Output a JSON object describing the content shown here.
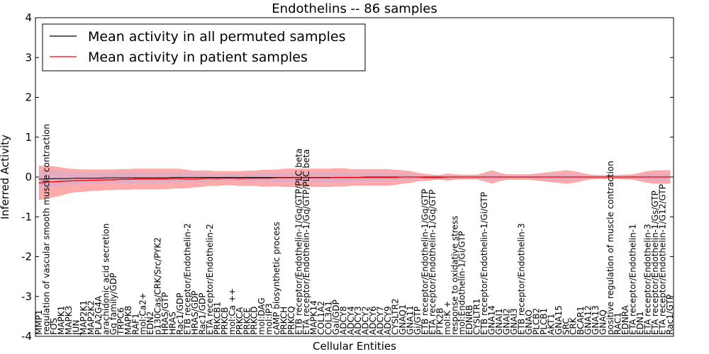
{
  "chart_data": {
    "type": "line",
    "title": "Endothelins -- 86 samples",
    "xlabel": "Cellular Entities",
    "ylabel": "Inferred Activity",
    "ylim": [
      -4,
      4
    ],
    "yticks": [
      -4,
      -3,
      -2,
      -1,
      0,
      1,
      2,
      3,
      4
    ],
    "grid": false,
    "legend_position": "top-left",
    "categories": [
      "MMP1",
      "regulation of vascular smooth muscle contraction",
      "FOS",
      "MAPK1",
      "MAPK3",
      "JUN",
      "MAP2K1",
      "MAP2K2",
      "PLA2G4A",
      "arachidonic acid secretion",
      "Gq family/GDP",
      "TRPC6",
      "MAPK8",
      "RAF1",
      "mol:Ca2+",
      "EDN2",
      "p130Cas/CRK/Src/PYK2",
      "HRAS/GTP",
      "HRAS",
      "Rac1/GDP",
      "ETB receptor/Endothelin-2",
      "HRAS/GDP",
      "Rac1/GDP",
      "ETA receptor/Endothelin-2",
      "PRKCB1",
      "PRKCB",
      "mol:Ca ++",
      "PRKCA",
      "PRKCE",
      "PRKCD",
      "mol:DAG",
      "mol:IP3",
      "cAMP biosynthetic process",
      "PRKCH",
      "PRKCQ",
      "ETB receptor/Endothelin-1/Gq/GTP/PLC beta",
      "ETA receptor/Endothelin-1/Gq/GTP/PLC beta",
      "MAPK14",
      "COL1A2",
      "COL3A1",
      "Gai/GDP",
      "ADCY8",
      "ADCY4",
      "ADCY3",
      "ADCY2",
      "ADCY6",
      "ADCY7",
      "ADCY9",
      "CYSLTR2",
      "GNAQ1",
      "GNA11",
      "Gi/GTP",
      "ETB receptor/Endothelin-1/Gq/GTP",
      "ETA receptor/Endothelin-1/Gq/GTP",
      "PTK2B",
      "mol:K +",
      "response to oxidative stress",
      "mol:Endothelin-1/Gi/GTP",
      "EDNRB",
      "CYSLTR1",
      "ETB receptor/Endothelin-1/Gi/GTP",
      "GNA14",
      "GNAI1",
      "GNAI2",
      "GNAI3",
      "ETB receptor/Endothelin-3",
      "GNAO",
      "PLCB2",
      "PLCB1",
      "AKT1",
      "GNA15",
      "SRC",
      "CRK",
      "BCAR1",
      "GNA12",
      "GNA13",
      "GNAQ",
      "positive regulation of muscle contraction",
      "RAC1",
      "EDNRA",
      "ETA receptor/Endothelin-1",
      "EDN1",
      "ETA receptor/Endothelin-3",
      "ETA receptor/Endothelin-1/Gs/GTP",
      "ETA receptor/Endothelin-1/G12/GTP",
      "Rac1/GTP"
    ],
    "series": [
      {
        "name": "Mean activity in all permuted samples",
        "color": "#000000",
        "values": [
          -0.05,
          -0.05,
          -0.04,
          -0.04,
          -0.04,
          -0.03,
          -0.03,
          -0.03,
          -0.03,
          -0.02,
          -0.02,
          -0.02,
          -0.02,
          -0.02,
          -0.02,
          -0.02,
          -0.02,
          -0.02,
          -0.01,
          -0.01,
          -0.01,
          -0.01,
          -0.01,
          -0.01,
          -0.01,
          -0.01,
          -0.01,
          -0.01,
          -0.01,
          -0.01,
          -0.01,
          -0.01,
          -0.01,
          -0.01,
          -0.01,
          -0.01,
          -0.01,
          -0.01,
          -0.01,
          -0.01,
          -0.01,
          -0.01,
          -0.01,
          -0.01,
          0,
          0,
          0,
          0,
          0,
          0,
          0,
          0,
          0,
          0,
          0,
          0,
          0,
          0,
          0,
          0,
          0,
          0,
          0,
          0,
          0,
          0,
          0,
          0,
          0,
          0,
          0,
          0,
          0,
          0,
          0,
          0,
          0,
          0,
          0,
          0,
          0,
          0,
          0,
          0,
          0,
          0
        ]
      },
      {
        "name": "Mean activity in patient samples",
        "color": "#ff0000",
        "values": [
          -0.15,
          -0.13,
          -0.12,
          -0.11,
          -0.1,
          -0.09,
          -0.09,
          -0.08,
          -0.08,
          -0.07,
          -0.07,
          -0.06,
          -0.06,
          -0.05,
          -0.05,
          -0.05,
          -0.05,
          -0.05,
          -0.04,
          -0.04,
          -0.05,
          -0.05,
          -0.04,
          -0.03,
          -0.04,
          -0.03,
          -0.03,
          -0.04,
          -0.03,
          -0.03,
          -0.03,
          -0.03,
          -0.02,
          -0.02,
          -0.02,
          -0.02,
          -0.02,
          -0.02,
          -0.02,
          -0.02,
          -0.01,
          -0.01,
          -0.01,
          -0.01,
          -0.01,
          -0.01,
          -0.01,
          -0.01,
          -0.01,
          0,
          0,
          0,
          -0.01,
          -0.01,
          -0.01,
          0,
          0,
          0,
          0,
          0,
          0,
          0,
          0,
          0,
          0,
          0,
          0,
          0,
          0,
          0,
          0,
          0,
          0,
          0,
          0,
          0,
          0,
          0,
          0,
          0,
          0,
          0,
          0,
          0,
          0,
          0
        ]
      }
    ],
    "band_std": [
      0.42,
      0.4,
      0.38,
      0.34,
      0.3,
      0.28,
      0.27,
      0.26,
      0.26,
      0.25,
      0.25,
      0.25,
      0.25,
      0.25,
      0.25,
      0.25,
      0.25,
      0.25,
      0.24,
      0.24,
      0.22,
      0.2,
      0.2,
      0.18,
      0.18,
      0.17,
      0.17,
      0.18,
      0.18,
      0.18,
      0.2,
      0.2,
      0.2,
      0.22,
      0.22,
      0.22,
      0.22,
      0.22,
      0.22,
      0.22,
      0.22,
      0.22,
      0.2,
      0.2,
      0.2,
      0.2,
      0.2,
      0.2,
      0.18,
      0.16,
      0.14,
      0.1,
      0.08,
      0.06,
      0.05,
      0.08,
      0.06,
      0.05,
      0.05,
      0.05,
      0.1,
      0.16,
      0.1,
      0.06,
      0.06,
      0.06,
      0.06,
      0.08,
      0.1,
      0.12,
      0.14,
      0.16,
      0.14,
      0.1,
      0.06,
      0.04,
      0.04,
      0.04,
      0.04,
      0.05,
      0.06,
      0.1,
      0.14,
      0.16,
      0.16,
      0.16
    ]
  }
}
